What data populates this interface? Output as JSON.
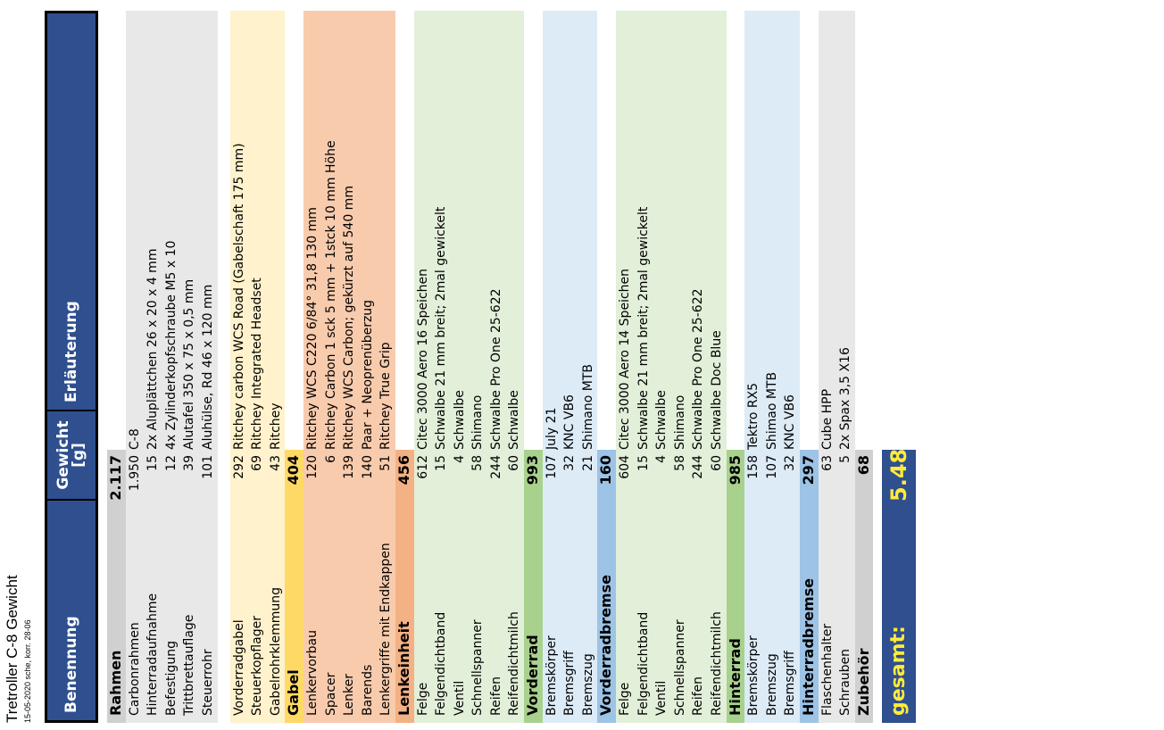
{
  "title": "Tretroller C-8 Gewicht",
  "subtitle": "15-05-2020 sche, korr. 28-06",
  "headers": {
    "name": "Benennung",
    "weight": "Gewicht [g]",
    "note": "Erläuterung"
  },
  "rows": [
    {
      "type": "section",
      "name": "Rahmen",
      "weight": "2.117",
      "note": "",
      "color": "#d0d0d0"
    },
    {
      "type": "item",
      "name": "Carbonrahmen",
      "weight": "1.950",
      "note": "C-8",
      "color": "#e8e8e8"
    },
    {
      "type": "item",
      "name": "Hinterradaufnahme",
      "weight": "15",
      "note": "2x Aluplättchen 26 x 20 x 4 mm",
      "color": "#e8e8e8"
    },
    {
      "type": "item",
      "name": "Befestigung",
      "weight": "12",
      "note": "4x Zylinderkopfschraube M5 x 10",
      "color": "#e8e8e8"
    },
    {
      "type": "item",
      "name": "Trittbrettauflage",
      "weight": "39",
      "note": "Alutafel 350 x 75 x 0,5 mm",
      "color": "#e8e8e8"
    },
    {
      "type": "item",
      "name": "Steuerrohr",
      "weight": "101",
      "note": "Aluhülse, Rd 46 x 120 mm",
      "color": "#e8e8e8"
    },
    {
      "type": "spacer"
    },
    {
      "type": "item",
      "name": "Vorderradgabel",
      "weight": "292",
      "note": "Ritchey carbon WCS  Road (Gabelschaft 175 mm)",
      "color": "#fff2cc"
    },
    {
      "type": "item",
      "name": "Steuerkopflager",
      "weight": "69",
      "note": "Ritchey Integrated Headset",
      "color": "#fff2cc"
    },
    {
      "type": "item",
      "name": "Gabelrohrklemmung",
      "weight": "43",
      "note": "Ritchey",
      "color": "#fff2cc"
    },
    {
      "type": "section",
      "name": "Gabel",
      "weight": "404",
      "note": "",
      "color": "#ffd966"
    },
    {
      "type": "item",
      "name": "Lenkervorbau",
      "weight": "120",
      "note": "Ritchey WCS C220 6/84° 31,8  130 mm",
      "color": "#f8cbad"
    },
    {
      "type": "item",
      "name": "Spacer",
      "weight": "6",
      "note": "Ritchey Carbon 1 sck  5 mm + 1stck 10 mm Höhe",
      "color": "#f8cbad"
    },
    {
      "type": "item",
      "name": "Lenker",
      "weight": "139",
      "note": "Ritchey WCS Carbon; gekürzt auf 540 mm",
      "color": "#f8cbad"
    },
    {
      "type": "item",
      "name": "Barends",
      "weight": "140",
      "note": "Paar + Neoprenüberzug",
      "color": "#f8cbad"
    },
    {
      "type": "item",
      "name": "Lenkergriffe mit Endkappen",
      "weight": "51",
      "note": "Ritchey True Grip",
      "color": "#f8cbad"
    },
    {
      "type": "section",
      "name": "Lenkeinheit",
      "weight": "456",
      "note": "",
      "color": "#f4b183"
    },
    {
      "type": "item",
      "name": "Felge",
      "weight": "612",
      "note": "Citec 3000 Aero 16 Speichen",
      "color": "#e2efd9"
    },
    {
      "type": "item",
      "name": "Felgendichtband",
      "weight": "15",
      "note": "Schwalbe 21 mm breit; 2mal gewickelt",
      "color": "#e2efd9"
    },
    {
      "type": "item",
      "name": "Ventil",
      "weight": "4",
      "note": "Schwalbe",
      "color": "#e2efd9"
    },
    {
      "type": "item",
      "name": "Schnellspanner",
      "weight": "58",
      "note": "Shimano",
      "color": "#e2efd9"
    },
    {
      "type": "item",
      "name": "Reifen",
      "weight": "244",
      "note": "Schwalbe Pro One 25-622",
      "color": "#e2efd9"
    },
    {
      "type": "item",
      "name": "Reifendichtmilch",
      "weight": "60",
      "note": "Schwalbe",
      "color": "#e2efd9"
    },
    {
      "type": "section",
      "name": "Vorderrad",
      "weight": "993",
      "note": "",
      "color": "#a9d18e"
    },
    {
      "type": "item",
      "name": "Bremskörper",
      "weight": "107",
      "note": "July 21",
      "color": "#ddebf7"
    },
    {
      "type": "item",
      "name": "Bremsgriff",
      "weight": "32",
      "note": "KNC VB6",
      "color": "#ddebf7"
    },
    {
      "type": "item",
      "name": "Bremszug",
      "weight": "21",
      "note": "Shimano MTB",
      "color": "#ddebf7"
    },
    {
      "type": "section",
      "name": "Vorderradbremse",
      "weight": "160",
      "note": "",
      "color": "#9dc3e6"
    },
    {
      "type": "item",
      "name": "Felge",
      "weight": "604",
      "note": "Citec 3000 Aero 14 Speichen",
      "color": "#e2efd9"
    },
    {
      "type": "item",
      "name": "Felgendichtband",
      "weight": "15",
      "note": "Schwalbe 21 mm breit; 2mal gewickelt",
      "color": "#e2efd9"
    },
    {
      "type": "item",
      "name": "Ventil",
      "weight": "4",
      "note": "Schwalbe",
      "color": "#e2efd9"
    },
    {
      "type": "item",
      "name": "Schnellspanner",
      "weight": "58",
      "note": "Shimano",
      "color": "#e2efd9"
    },
    {
      "type": "item",
      "name": "Reifen",
      "weight": "244",
      "note": "Schwalbe Pro One 25-622",
      "color": "#e2efd9"
    },
    {
      "type": "item",
      "name": "Reifendichtmilch",
      "weight": "60",
      "note": "Schwalbe Doc Blue",
      "color": "#e2efd9"
    },
    {
      "type": "section",
      "name": "Hinterrad",
      "weight": "985",
      "note": "",
      "color": "#a9d18e"
    },
    {
      "type": "item",
      "name": "Bremskörper",
      "weight": "158",
      "note": "Tektro RX5",
      "color": "#ddebf7"
    },
    {
      "type": "item",
      "name": "Bremszug",
      "weight": "107",
      "note": "Shimao MTB",
      "color": "#ddebf7"
    },
    {
      "type": "item",
      "name": "Bremsgriff",
      "weight": "32",
      "note": "KNC VB6",
      "color": "#ddebf7"
    },
    {
      "type": "section",
      "name": "Hinterradbremse",
      "weight": "297",
      "note": "",
      "color": "#9dc3e6"
    },
    {
      "type": "item",
      "name": "Flaschenhalter",
      "weight": "63",
      "note": "Cube HPP",
      "color": "#e8e8e8"
    },
    {
      "type": "item",
      "name": "Schrauben",
      "weight": "5",
      "note": "2x Spax 3,5 X16",
      "color": "#e8e8e8"
    },
    {
      "type": "section",
      "name": "Zubehör",
      "weight": "68",
      "note": "",
      "color": "#d0d0d0"
    },
    {
      "type": "total",
      "name": "gesamt:",
      "weight": "5.480",
      "note": "",
      "color": "#2f4f8f"
    }
  ]
}
